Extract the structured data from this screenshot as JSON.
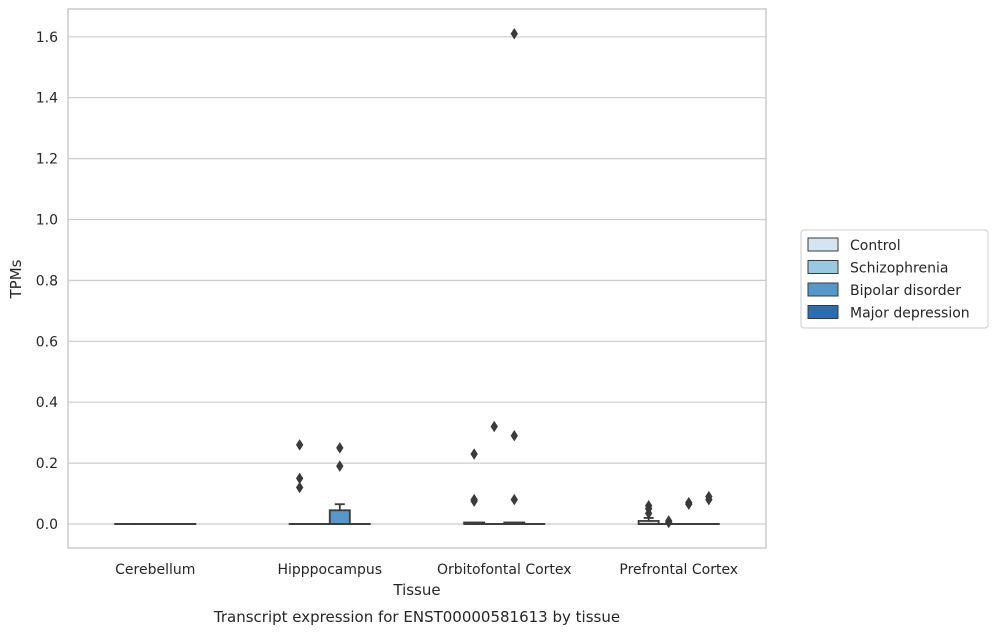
{
  "chart_data": {
    "type": "box",
    "title": "",
    "caption": "Transcript expression for ENST00000581613 by tissue",
    "xlabel": "Tissue",
    "ylabel": "TPMs",
    "ylim": [
      -0.08,
      1.69
    ],
    "yticks": [
      "0.0",
      "0.2",
      "0.4",
      "0.6",
      "0.8",
      "1.0",
      "1.2",
      "1.4",
      "1.6"
    ],
    "categories": [
      "Cerebellum",
      "Hipppocampus",
      "Orbitofontal Cortex",
      "Prefrontal Cortex"
    ],
    "grid": "horizontal",
    "legend_position": "right",
    "series": [
      {
        "name": "Control",
        "color": "#d4e4f1",
        "boxes": [
          {
            "q1": 0,
            "median": 0,
            "q3": 0,
            "whislo": 0,
            "whishi": 0,
            "outliers": []
          },
          {
            "q1": 0,
            "median": 0,
            "q3": 0,
            "whislo": 0,
            "whishi": 0,
            "outliers": [
              0.26,
              0.15,
              0.12
            ]
          },
          {
            "q1": 0,
            "median": 0,
            "q3": 0.005,
            "whislo": 0,
            "whishi": 0.005,
            "outliers": [
              0.23,
              0.08,
              0.075
            ]
          },
          {
            "q1": 0,
            "median": 0,
            "q3": 0.01,
            "whislo": 0,
            "whishi": 0.02,
            "outliers": [
              0.06,
              0.05,
              0.035
            ]
          }
        ]
      },
      {
        "name": "Schizophrenia",
        "color": "#9ac8e0",
        "boxes": [
          {
            "q1": 0,
            "median": 0,
            "q3": 0,
            "whislo": 0,
            "whishi": 0,
            "outliers": []
          },
          {
            "q1": 0,
            "median": 0,
            "q3": 0,
            "whislo": 0,
            "whishi": 0,
            "outliers": []
          },
          {
            "q1": 0,
            "median": 0,
            "q3": 0,
            "whislo": 0,
            "whishi": 0,
            "outliers": [
              0.32
            ]
          },
          {
            "q1": 0,
            "median": 0,
            "q3": 0,
            "whislo": 0,
            "whishi": 0,
            "outliers": [
              0.01,
              0.005
            ]
          }
        ]
      },
      {
        "name": "Bipolar disorder",
        "color": "#5598c9",
        "boxes": [
          {
            "q1": 0,
            "median": 0,
            "q3": 0,
            "whislo": 0,
            "whishi": 0,
            "outliers": []
          },
          {
            "q1": 0,
            "median": 0,
            "q3": 0.045,
            "whislo": 0,
            "whishi": 0.065,
            "outliers": [
              0.25,
              0.19
            ]
          },
          {
            "q1": 0,
            "median": 0,
            "q3": 0.005,
            "whislo": 0,
            "whishi": 0.005,
            "outliers": [
              1.61,
              0.29,
              0.08
            ]
          },
          {
            "q1": 0,
            "median": 0,
            "q3": 0,
            "whislo": 0,
            "whishi": 0,
            "outliers": [
              0.07,
              0.065
            ]
          }
        ]
      },
      {
        "name": "Major depression",
        "color": "#2a6eaf",
        "boxes": [
          {
            "q1": 0,
            "median": 0,
            "q3": 0,
            "whislo": 0,
            "whishi": 0,
            "outliers": []
          },
          {
            "q1": 0,
            "median": 0,
            "q3": 0,
            "whislo": 0,
            "whishi": 0,
            "outliers": []
          },
          {
            "q1": 0,
            "median": 0,
            "q3": 0,
            "whislo": 0,
            "whishi": 0,
            "outliers": []
          },
          {
            "q1": 0,
            "median": 0,
            "q3": 0,
            "whislo": 0,
            "whishi": 0,
            "outliers": [
              0.09,
              0.08
            ]
          }
        ]
      }
    ]
  }
}
